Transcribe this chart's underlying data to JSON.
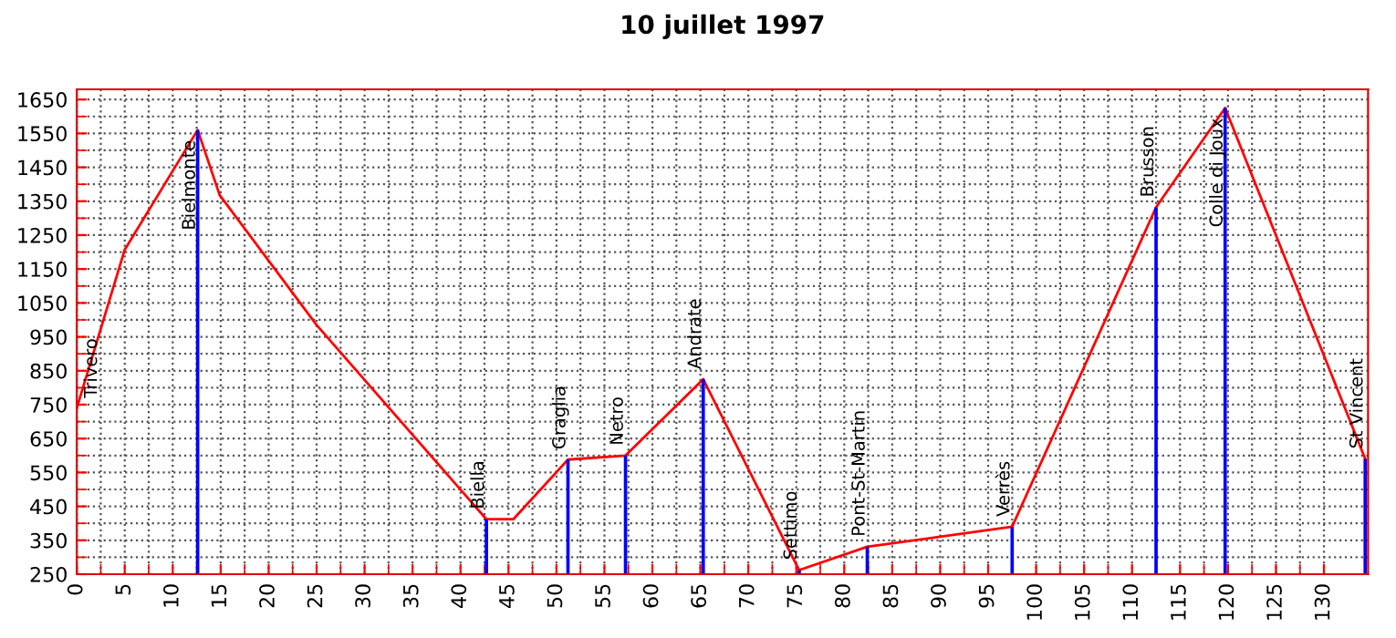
{
  "chart_data": {
    "type": "line",
    "title": "10 juillet 1997",
    "x": [
      0,
      5,
      12.6,
      14.9,
      25,
      42.7,
      45.5,
      51.2,
      57.2,
      65.3,
      75.3,
      82.4,
      97.5,
      112.5,
      119.7,
      134.3
    ],
    "series": [
      {
        "color": "#ff0000",
        "values": [
          740,
          1207,
          1560,
          1368,
          985,
          412,
          412,
          588,
          600,
          825,
          262,
          331,
          390,
          1332,
          1625,
          590
        ]
      },
      {
        "type": "bar",
        "color": "#0000ff",
        "x": [
          12.6,
          42.7,
          51.2,
          57.2,
          65.3,
          75.3,
          82.4,
          97.5,
          112.5,
          119.7,
          134.3
        ],
        "values": [
          1560,
          412,
          588,
          600,
          825,
          262,
          331,
          390,
          1332,
          1625,
          590
        ]
      }
    ],
    "annotations": [
      {
        "text": "Trivero",
        "x": 0,
        "y": 740
      },
      {
        "text": "Bielmonte",
        "x": 12.6,
        "y": 1560
      },
      {
        "text": "Biella",
        "x": 42.7,
        "y": 412
      },
      {
        "text": "Graglia",
        "x": 51.2,
        "y": 588
      },
      {
        "text": "Netro",
        "x": 57.2,
        "y": 600
      },
      {
        "text": "Andrate",
        "x": 65.3,
        "y": 825
      },
      {
        "text": "Settimo",
        "x": 75.3,
        "y": 262
      },
      {
        "text": "Pont-St-Martin",
        "x": 82.4,
        "y": 331
      },
      {
        "text": "Verrès",
        "x": 97.5,
        "y": 390
      },
      {
        "text": "Brusson",
        "x": 112.5,
        "y": 1332
      },
      {
        "text": "Colle di Joux",
        "x": 119.7,
        "y": 1625
      },
      {
        "text": "St Vincent",
        "x": 134.3,
        "y": 590
      }
    ],
    "xlim": [
      0,
      134.6
    ],
    "xticks": [
      0,
      5,
      10,
      15,
      20,
      25,
      30,
      35,
      40,
      45,
      50,
      55,
      60,
      65,
      70,
      75,
      80,
      85,
      90,
      95,
      100,
      105,
      110,
      115,
      120,
      125,
      130
    ],
    "ylim": [
      250,
      1680
    ],
    "yticks": [
      250,
      350,
      450,
      550,
      650,
      750,
      850,
      950,
      1050,
      1150,
      1250,
      1350,
      1450,
      1550,
      1650
    ],
    "grid": true,
    "marker": "none",
    "line_style": "solid"
  }
}
